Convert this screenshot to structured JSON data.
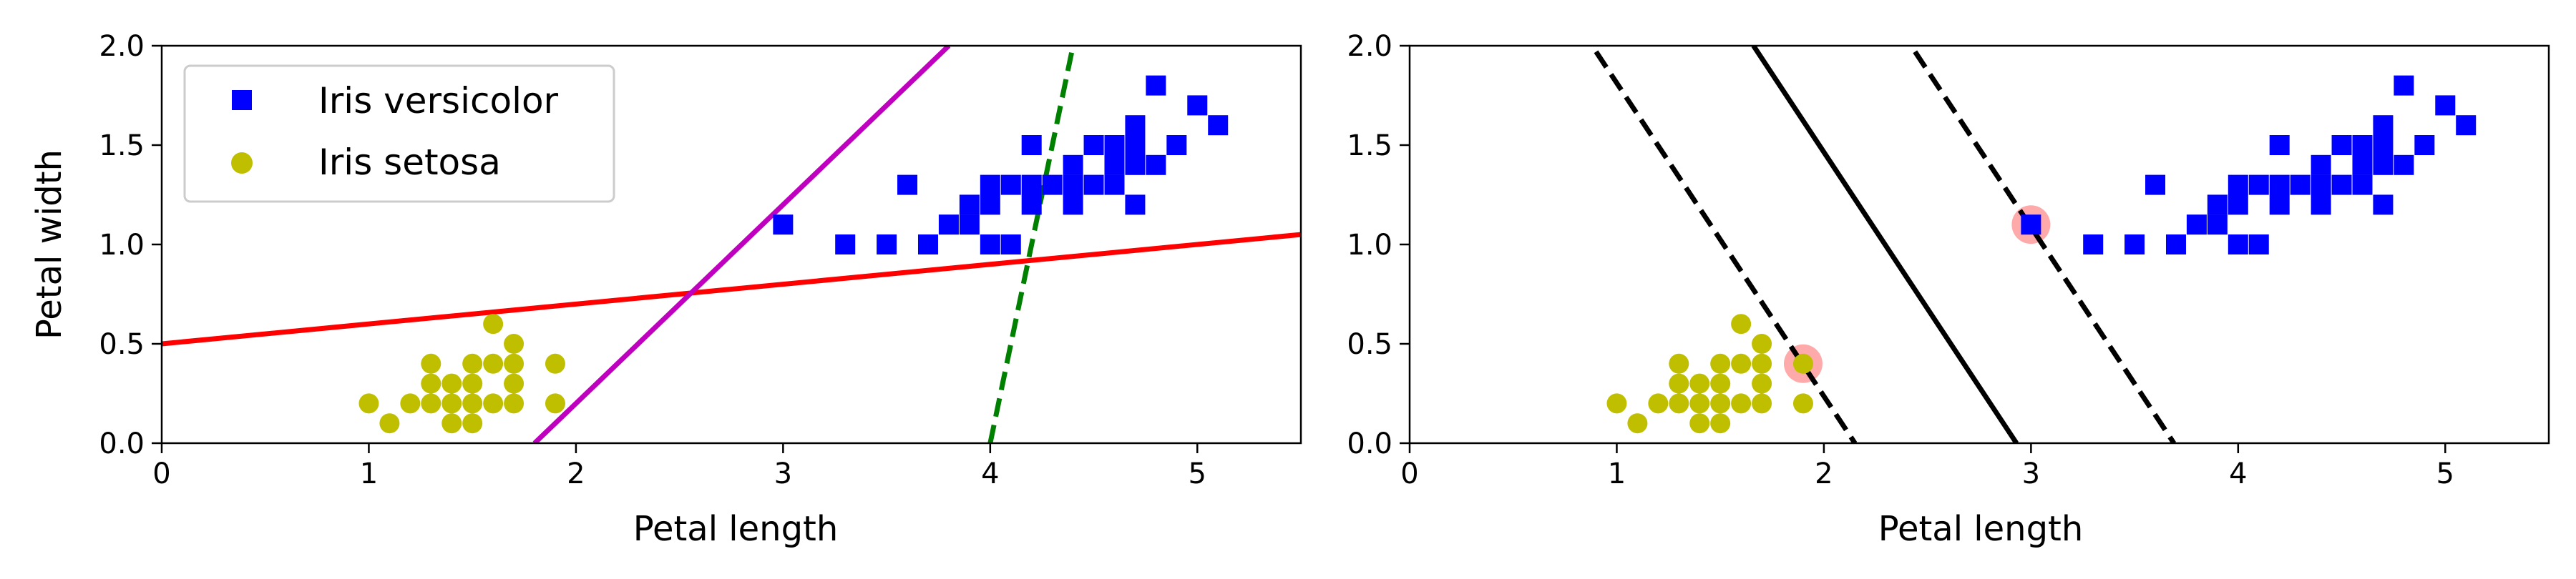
{
  "chart_data": [
    {
      "type": "scatter",
      "title": "",
      "xlabel": "Petal length",
      "ylabel": "Petal width",
      "xlim": [
        0,
        5.5
      ],
      "ylim": [
        0,
        2.0
      ],
      "xticks": [
        "0",
        "1",
        "2",
        "3",
        "4",
        "5"
      ],
      "yticks": [
        "0.0",
        "0.5",
        "1.0",
        "1.5",
        "2.0"
      ],
      "legend": {
        "placement": "upper-left",
        "entries": [
          "Iris versicolor",
          "Iris setosa"
        ]
      },
      "series": [
        {
          "name": "Iris versicolor",
          "marker": "square",
          "color": "#0000ff",
          "points": [
            [
              3.0,
              1.1
            ],
            [
              3.3,
              1.0
            ],
            [
              3.5,
              1.0
            ],
            [
              3.6,
              1.3
            ],
            [
              3.7,
              1.0
            ],
            [
              3.8,
              1.1
            ],
            [
              3.9,
              1.1
            ],
            [
              3.9,
              1.2
            ],
            [
              4.0,
              1.0
            ],
            [
              4.0,
              1.2
            ],
            [
              4.0,
              1.3
            ],
            [
              4.1,
              1.0
            ],
            [
              4.1,
              1.3
            ],
            [
              4.2,
              1.2
            ],
            [
              4.2,
              1.3
            ],
            [
              4.2,
              1.5
            ],
            [
              4.3,
              1.3
            ],
            [
              4.4,
              1.2
            ],
            [
              4.4,
              1.3
            ],
            [
              4.4,
              1.4
            ],
            [
              4.5,
              1.3
            ],
            [
              4.5,
              1.5
            ],
            [
              4.6,
              1.3
            ],
            [
              4.6,
              1.4
            ],
            [
              4.6,
              1.5
            ],
            [
              4.7,
              1.2
            ],
            [
              4.7,
              1.4
            ],
            [
              4.7,
              1.5
            ],
            [
              4.7,
              1.6
            ],
            [
              4.8,
              1.4
            ],
            [
              4.8,
              1.8
            ],
            [
              4.9,
              1.5
            ],
            [
              5.0,
              1.7
            ],
            [
              5.1,
              1.6
            ]
          ]
        },
        {
          "name": "Iris setosa",
          "marker": "circle",
          "color": "#bfbf00",
          "points": [
            [
              1.0,
              0.2
            ],
            [
              1.1,
              0.1
            ],
            [
              1.2,
              0.2
            ],
            [
              1.3,
              0.2
            ],
            [
              1.3,
              0.3
            ],
            [
              1.3,
              0.4
            ],
            [
              1.4,
              0.1
            ],
            [
              1.4,
              0.2
            ],
            [
              1.4,
              0.3
            ],
            [
              1.5,
              0.1
            ],
            [
              1.5,
              0.2
            ],
            [
              1.5,
              0.3
            ],
            [
              1.5,
              0.4
            ],
            [
              1.6,
              0.2
            ],
            [
              1.6,
              0.4
            ],
            [
              1.6,
              0.6
            ],
            [
              1.7,
              0.2
            ],
            [
              1.7,
              0.3
            ],
            [
              1.7,
              0.4
            ],
            [
              1.7,
              0.5
            ],
            [
              1.9,
              0.2
            ],
            [
              1.9,
              0.4
            ]
          ]
        }
      ],
      "lines": [
        {
          "name": "red-line",
          "color": "#ff0000",
          "style": "solid",
          "points": [
            [
              0,
              0.5
            ],
            [
              5.5,
              1.05
            ]
          ]
        },
        {
          "name": "magenta-line",
          "color": "#bf00bf",
          "style": "solid",
          "points": [
            [
              1.8,
              0.0
            ],
            [
              3.8,
              2.0
            ]
          ]
        },
        {
          "name": "green-dashed-line",
          "color": "#008000",
          "style": "dashed",
          "points": [
            [
              4.0,
              0.0
            ],
            [
              4.4,
              2.0
            ]
          ]
        }
      ]
    },
    {
      "type": "scatter",
      "title": "",
      "xlabel": "Petal length",
      "ylabel": "",
      "xlim": [
        0,
        5.5
      ],
      "ylim": [
        0,
        2.0
      ],
      "xticks": [
        "0",
        "1",
        "2",
        "3",
        "4",
        "5"
      ],
      "yticks": [
        "0.0",
        "0.5",
        "1.0",
        "1.5",
        "2.0"
      ],
      "series": [
        {
          "name": "Iris versicolor",
          "marker": "square",
          "color": "#0000ff",
          "points": [
            [
              3.0,
              1.1
            ],
            [
              3.3,
              1.0
            ],
            [
              3.5,
              1.0
            ],
            [
              3.6,
              1.3
            ],
            [
              3.7,
              1.0
            ],
            [
              3.8,
              1.1
            ],
            [
              3.9,
              1.1
            ],
            [
              3.9,
              1.2
            ],
            [
              4.0,
              1.0
            ],
            [
              4.0,
              1.2
            ],
            [
              4.0,
              1.3
            ],
            [
              4.1,
              1.0
            ],
            [
              4.1,
              1.3
            ],
            [
              4.2,
              1.2
            ],
            [
              4.2,
              1.3
            ],
            [
              4.2,
              1.5
            ],
            [
              4.3,
              1.3
            ],
            [
              4.4,
              1.2
            ],
            [
              4.4,
              1.3
            ],
            [
              4.4,
              1.4
            ],
            [
              4.5,
              1.3
            ],
            [
              4.5,
              1.5
            ],
            [
              4.6,
              1.3
            ],
            [
              4.6,
              1.4
            ],
            [
              4.6,
              1.5
            ],
            [
              4.7,
              1.2
            ],
            [
              4.7,
              1.4
            ],
            [
              4.7,
              1.5
            ],
            [
              4.7,
              1.6
            ],
            [
              4.8,
              1.4
            ],
            [
              4.8,
              1.8
            ],
            [
              4.9,
              1.5
            ],
            [
              5.0,
              1.7
            ],
            [
              5.1,
              1.6
            ]
          ]
        },
        {
          "name": "Iris setosa",
          "marker": "circle",
          "color": "#bfbf00",
          "points": [
            [
              1.0,
              0.2
            ],
            [
              1.1,
              0.1
            ],
            [
              1.2,
              0.2
            ],
            [
              1.3,
              0.2
            ],
            [
              1.3,
              0.3
            ],
            [
              1.3,
              0.4
            ],
            [
              1.4,
              0.1
            ],
            [
              1.4,
              0.2
            ],
            [
              1.4,
              0.3
            ],
            [
              1.5,
              0.1
            ],
            [
              1.5,
              0.2
            ],
            [
              1.5,
              0.3
            ],
            [
              1.5,
              0.4
            ],
            [
              1.6,
              0.2
            ],
            [
              1.6,
              0.4
            ],
            [
              1.6,
              0.6
            ],
            [
              1.7,
              0.2
            ],
            [
              1.7,
              0.3
            ],
            [
              1.7,
              0.4
            ],
            [
              1.7,
              0.5
            ],
            [
              1.9,
              0.2
            ],
            [
              1.9,
              0.4
            ]
          ]
        }
      ],
      "support_vectors": {
        "color": "#ffaaaa",
        "points": [
          [
            1.9,
            0.4
          ],
          [
            3.0,
            1.1
          ]
        ]
      },
      "lines": [
        {
          "name": "decision-boundary",
          "color": "#000000",
          "style": "solid",
          "points": [
            [
              1.66,
              2.0
            ],
            [
              2.93,
              0.0
            ]
          ]
        },
        {
          "name": "margin-lower",
          "color": "#000000",
          "style": "dashed",
          "points": [
            [
              0.9,
              1.97
            ],
            [
              2.15,
              0.0
            ]
          ]
        },
        {
          "name": "margin-upper",
          "color": "#000000",
          "style": "dashed",
          "points": [
            [
              2.44,
              1.97
            ],
            [
              3.69,
              0.0
            ]
          ]
        }
      ]
    }
  ]
}
